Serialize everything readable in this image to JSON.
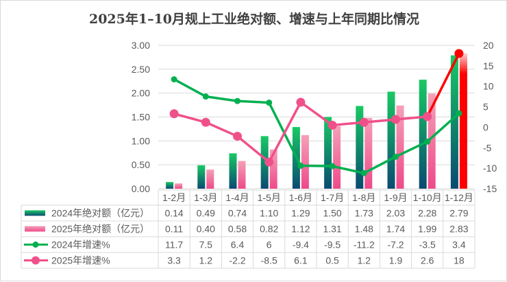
{
  "chart_data": {
    "type": "bar+line",
    "title": "2025年1–10月规上工业绝对额、增速与上年同期比情况",
    "categories": [
      "1-2月",
      "1-3月",
      "1-4月",
      "1-5月",
      "1-6月",
      "1-7月",
      "1-8月",
      "1-9月",
      "1-10月",
      "1-12月"
    ],
    "series": [
      {
        "name": "2024年绝对额（亿元）",
        "type": "bar",
        "axis": "left",
        "color": "#00b050",
        "values": [
          0.14,
          0.49,
          0.74,
          1.1,
          1.29,
          1.5,
          1.73,
          2.03,
          2.28,
          2.79
        ]
      },
      {
        "name": "2025年绝对额（亿元）",
        "type": "bar",
        "axis": "left",
        "color": "#f0508a",
        "values": [
          0.11,
          0.4,
          0.58,
          0.82,
          1.12,
          1.31,
          1.48,
          1.74,
          1.99,
          2.83
        ]
      },
      {
        "name": "2024年增速%",
        "type": "line",
        "axis": "right",
        "color": "#00b050",
        "values": [
          11.7,
          7.5,
          6.4,
          6,
          -9.4,
          -9.5,
          -11.2,
          -7.2,
          -3.5,
          3.4
        ]
      },
      {
        "name": "2025年增速%",
        "type": "line",
        "axis": "right",
        "color": "#f0508a",
        "values": [
          3.3,
          1.2,
          -2.2,
          -8.5,
          6.1,
          0.5,
          1.2,
          1.9,
          2.6,
          18
        ]
      }
    ],
    "highlight_color": "#ff0000",
    "left_axis": {
      "range": [
        0,
        3
      ],
      "ticks": [
        "0.00",
        "0.50",
        "1.00",
        "1.50",
        "2.00",
        "2.50",
        "3.00"
      ]
    },
    "right_axis": {
      "range": [
        -15,
        20
      ],
      "ticks": [
        "-15",
        "-10",
        "-5",
        "0",
        "5",
        "10",
        "15",
        "20"
      ]
    },
    "grid": true,
    "legend": "data-table"
  }
}
